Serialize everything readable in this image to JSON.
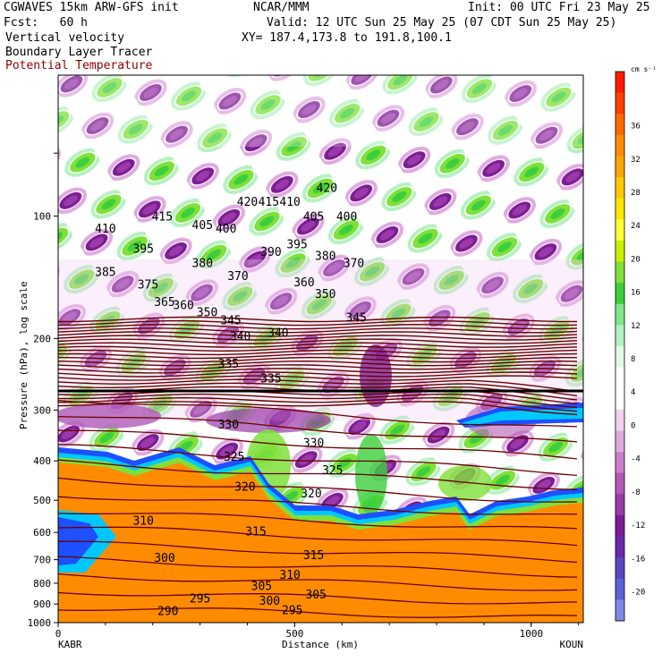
{
  "header": {
    "model": "CGWAVES 15km ARW-GFS init",
    "org": "NCAR/MMM",
    "init": "Init: 00 UTC Fri 23 May 25",
    "fcst": "Fcst:   60 h",
    "valid": "Valid: 12 UTC Sun 25 May 25 (07 CDT Sun 25 May 25)",
    "field1": "Vertical velocity",
    "xy": "XY= 187.4,173.8 to 191.8,100.1",
    "field2": "Boundary Layer Tracer",
    "field3": "Potential Temperature"
  },
  "colors": {
    "theta_label": "#8b0000",
    "theta_line": "#6b0000",
    "boundary_orange": "#ff8c00",
    "boundary_edge": "#1e50ff"
  },
  "chart_data": {
    "type": "heatmap",
    "xlabel": "Distance (km)",
    "ylabel": "Pressure (hPa), log scale",
    "xlim": [
      0,
      1110
    ],
    "x_ticks": [
      0,
      500,
      1000
    ],
    "x_end_labels": [
      "KABR",
      "KOUN"
    ],
    "y_scale": "log",
    "y_ticks": [
      100,
      200,
      300,
      400,
      500,
      600,
      700,
      800,
      900,
      1000
    ],
    "colorbar": {
      "unit": "cm s⁻¹",
      "tick_labels": [
        "36",
        "32",
        "28",
        "24",
        "20",
        "16",
        "12",
        "8",
        "4",
        "0",
        "-4",
        "-8",
        "-12",
        "-16",
        "-20"
      ],
      "bins": [
        "#ff1a00",
        "#ff4000",
        "#ff6a00",
        "#ff8c00",
        "#ffa500",
        "#ffc800",
        "#ffe600",
        "#ffff33",
        "#c8f000",
        "#7fe03a",
        "#3ccf3c",
        "#7fe88a",
        "#b4f2c0",
        "#e0fae4",
        "#ffffff",
        "#ffffff",
        "#f0d2f0",
        "#e0aae0",
        "#cc80cc",
        "#b25ab8",
        "#9a3aa8",
        "#7d1c96",
        "#6a2aa8",
        "#5a46c0",
        "#5a64d8",
        "#7d8ae8"
      ]
    },
    "theta_contours": [
      {
        "label": "420",
        "x": 568,
        "p": 85
      },
      {
        "label": "420",
        "x": 400,
        "p": 92
      },
      {
        "label": "415",
        "x": 445,
        "p": 92
      },
      {
        "label": "410",
        "x": 490,
        "p": 92
      },
      {
        "label": "415",
        "x": 220,
        "p": 100
      },
      {
        "label": "410",
        "x": 100,
        "p": 107
      },
      {
        "label": "405",
        "x": 305,
        "p": 105
      },
      {
        "label": "400",
        "x": 355,
        "p": 107
      },
      {
        "label": "405",
        "x": 540,
        "p": 100
      },
      {
        "label": "400",
        "x": 610,
        "p": 100
      },
      {
        "label": "395",
        "x": 180,
        "p": 120
      },
      {
        "label": "390",
        "x": 450,
        "p": 122
      },
      {
        "label": "395",
        "x": 505,
        "p": 117
      },
      {
        "label": "380",
        "x": 305,
        "p": 130
      },
      {
        "label": "380",
        "x": 565,
        "p": 125
      },
      {
        "label": "370",
        "x": 625,
        "p": 130
      },
      {
        "label": "385",
        "x": 100,
        "p": 137
      },
      {
        "label": "370",
        "x": 380,
        "p": 140
      },
      {
        "label": "375",
        "x": 190,
        "p": 147
      },
      {
        "label": "360",
        "x": 520,
        "p": 145
      },
      {
        "label": "350",
        "x": 565,
        "p": 155
      },
      {
        "label": "365",
        "x": 225,
        "p": 162
      },
      {
        "label": "360",
        "x": 265,
        "p": 165
      },
      {
        "label": "350",
        "x": 315,
        "p": 172
      },
      {
        "label": "345",
        "x": 365,
        "p": 180
      },
      {
        "label": "340",
        "x": 385,
        "p": 197
      },
      {
        "label": "340",
        "x": 465,
        "p": 193
      },
      {
        "label": "345",
        "x": 630,
        "p": 177
      },
      {
        "label": "335",
        "x": 360,
        "p": 230
      },
      {
        "label": "335",
        "x": 450,
        "p": 250
      },
      {
        "label": "330",
        "x": 360,
        "p": 325
      },
      {
        "label": "330",
        "x": 540,
        "p": 360
      },
      {
        "label": "325",
        "x": 580,
        "p": 420
      },
      {
        "label": "325",
        "x": 372,
        "p": 390
      },
      {
        "label": "320",
        "x": 395,
        "p": 462
      },
      {
        "label": "320",
        "x": 535,
        "p": 480
      },
      {
        "label": "315",
        "x": 418,
        "p": 595
      },
      {
        "label": "310",
        "x": 180,
        "p": 560
      },
      {
        "label": "315",
        "x": 540,
        "p": 680
      },
      {
        "label": "310",
        "x": 490,
        "p": 760
      },
      {
        "label": "300",
        "x": 225,
        "p": 690
      },
      {
        "label": "305",
        "x": 430,
        "p": 810
      },
      {
        "label": "305",
        "x": 545,
        "p": 850
      },
      {
        "label": "300",
        "x": 447,
        "p": 880
      },
      {
        "label": "295",
        "x": 300,
        "p": 870
      },
      {
        "label": "295",
        "x": 495,
        "p": 930
      },
      {
        "label": "290",
        "x": 232,
        "p": 935
      }
    ]
  }
}
